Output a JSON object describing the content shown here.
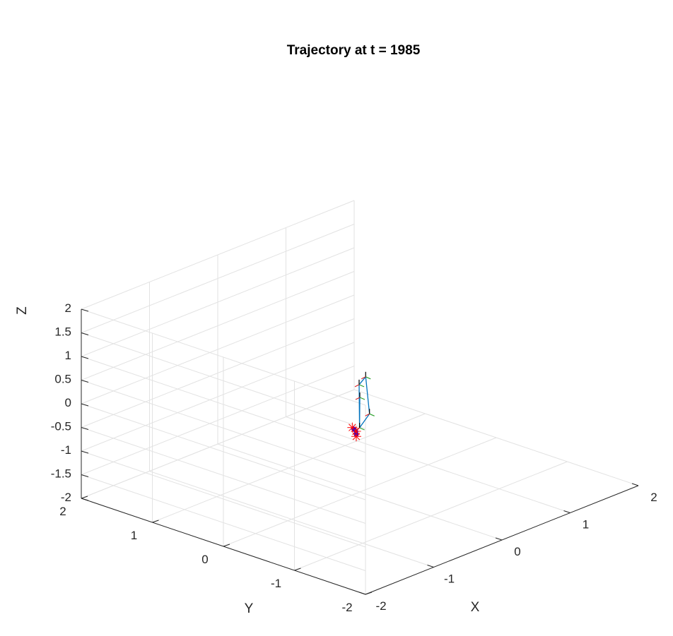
{
  "chart_data": {
    "type": "line3d",
    "title": "Trajectory at t = 1985",
    "xlabel": "X",
    "ylabel": "Y",
    "zlabel": "Z",
    "xlim": [
      -2,
      2
    ],
    "ylim": [
      -2,
      2
    ],
    "zlim": [
      -2,
      2
    ],
    "xticks": [
      "-2",
      "-1",
      "0",
      "1",
      "2"
    ],
    "yticks": [
      "-2",
      "-1",
      "0",
      "1",
      "2"
    ],
    "zticks": [
      "-2",
      "-1.5",
      "-1",
      "-0.5",
      "0",
      "0.5",
      "1",
      "1.5",
      "2"
    ],
    "grid": true,
    "series": [
      {
        "style": "line",
        "color": "#0072BD",
        "points": [
          [
            0.0,
            0.0,
            0.0
          ],
          [
            0.1,
            0.1,
            -0.75
          ],
          [
            0.35,
            0.2,
            -0.65
          ],
          [
            0.45,
            0.35,
            0.0
          ],
          [
            0.25,
            0.25,
            0.0
          ],
          [
            0.1,
            0.1,
            -0.75
          ]
        ]
      },
      {
        "style": "line",
        "color": "#0000FF",
        "points": [
          [
            0.0,
            0.05,
            -0.85
          ],
          [
            0.1,
            0.15,
            -0.85
          ],
          [
            0.15,
            0.25,
            -0.85
          ]
        ]
      },
      {
        "style": "markers",
        "marker": "*",
        "color": "#FF0000",
        "points": [
          [
            0.0,
            0.05,
            -0.85
          ],
          [
            0.1,
            0.15,
            -0.85
          ],
          [
            0.15,
            0.25,
            -0.85
          ]
        ]
      }
    ]
  }
}
